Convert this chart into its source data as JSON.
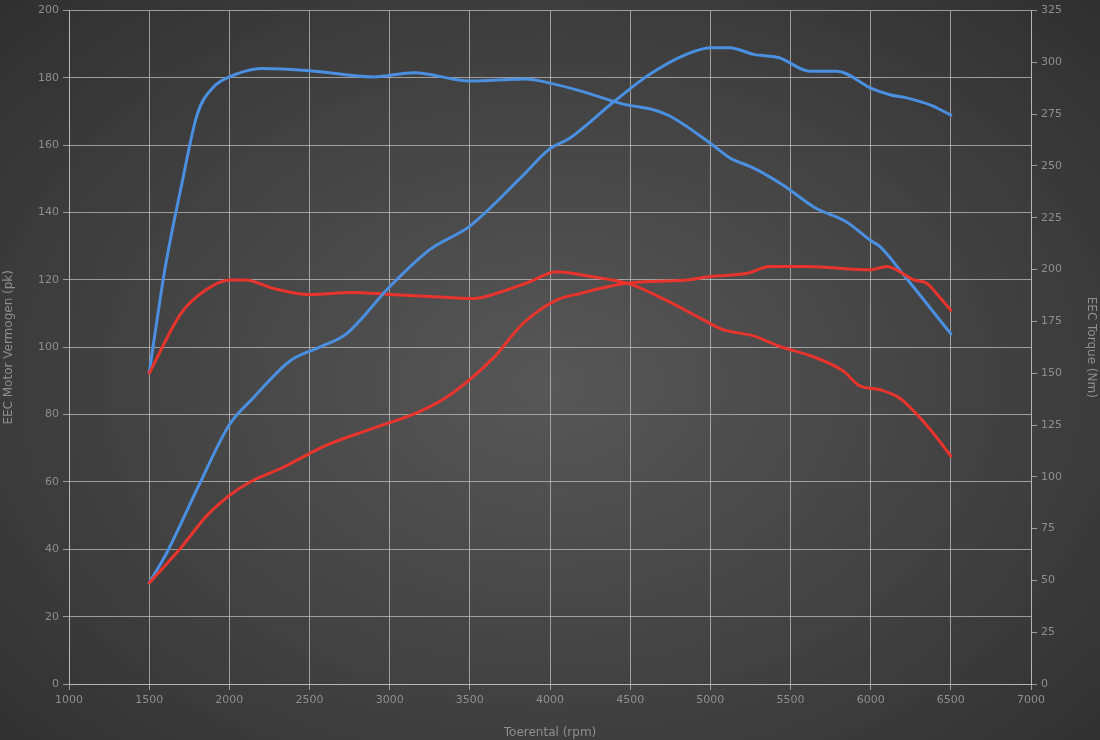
{
  "chart_data": {
    "type": "line",
    "xlabel": "Toerental (rpm)",
    "ylabel": "EEC Motor Vermogen (pk)",
    "y2label": "EEC Torque (Nm)",
    "xlim": [
      1000,
      7000
    ],
    "xticks": [
      1000,
      1500,
      2000,
      2500,
      3000,
      3500,
      4000,
      4500,
      5000,
      5500,
      6000,
      6500,
      7000
    ],
    "ylim": [
      0,
      200
    ],
    "yticks": [
      0,
      20,
      40,
      60,
      80,
      100,
      120,
      140,
      160,
      180,
      200
    ],
    "y2lim": [
      0,
      325
    ],
    "y2ticks": [
      0,
      25,
      50,
      75,
      100,
      125,
      150,
      175,
      200,
      225,
      250,
      275,
      300,
      325
    ],
    "grid": true,
    "marker": "none",
    "line_style": "solid",
    "series": [
      {
        "color": "#e8342c",
        "x": [
          1500,
          1690,
          1860,
          2000,
          2130,
          2320,
          2610,
          2900,
          3190,
          3380,
          3650,
          3830,
          4040,
          4190,
          4480,
          4850,
          5000,
          5230,
          5370,
          5600,
          6000,
          6100,
          6270,
          6350,
          6410,
          6500
        ],
        "values": [
          30,
          40,
          50,
          56,
          60,
          64,
          71,
          76,
          81,
          86,
          97,
          107,
          114,
          116,
          119,
          120,
          121,
          122,
          124,
          124,
          123,
          124,
          120,
          119,
          116,
          111
        ]
      },
      {
        "color": "#4a8fe0",
        "x": [
          1500,
          1610,
          1820,
          2000,
          2150,
          2380,
          2560,
          2730,
          3000,
          3250,
          3500,
          3810,
          4000,
          4120,
          4400,
          4620,
          4850,
          5000,
          5120,
          5270,
          5430,
          5620,
          5790,
          6000,
          6120,
          6230,
          6370,
          6500
        ],
        "values": [
          30,
          39,
          60,
          77,
          85,
          96,
          100,
          104,
          118,
          129,
          136,
          150,
          159,
          162,
          173,
          181,
          187,
          189,
          189,
          187,
          186,
          182,
          182,
          177,
          175,
          174,
          172,
          169
        ]
      },
      {
        "color": "#e8342c",
        "axis": "y2",
        "x": [
          1500,
          1700,
          1850,
          2000,
          2100,
          2270,
          2500,
          2770,
          3000,
          3250,
          3520,
          3600,
          3870,
          4040,
          4230,
          4500,
          4730,
          4950,
          5080,
          5270,
          5430,
          5640,
          5830,
          5930,
          6060,
          6180,
          6370,
          6500
        ],
        "values": [
          150,
          179,
          190,
          195,
          195,
          191,
          188,
          189,
          188,
          187,
          186,
          187,
          194,
          199,
          197,
          193,
          185,
          176,
          171,
          168,
          163,
          158,
          151,
          144,
          142,
          138,
          123,
          110
        ]
      },
      {
        "color": "#4a8fe0",
        "axis": "y2",
        "x": [
          1500,
          1600,
          1700,
          1800,
          1900,
          2000,
          2200,
          2500,
          2900,
          3150,
          3500,
          3850,
          4000,
          4200,
          4450,
          4650,
          4750,
          5000,
          5120,
          5270,
          5450,
          5650,
          5850,
          6000,
          6060,
          6200,
          6500
        ],
        "values": [
          150,
          201,
          240,
          275,
          288,
          293,
          297,
          296,
          293,
          295,
          291,
          292,
          290,
          286,
          280,
          277,
          274,
          261,
          254,
          249,
          241,
          230,
          223,
          214,
          211,
          198,
          169
        ]
      }
    ]
  }
}
